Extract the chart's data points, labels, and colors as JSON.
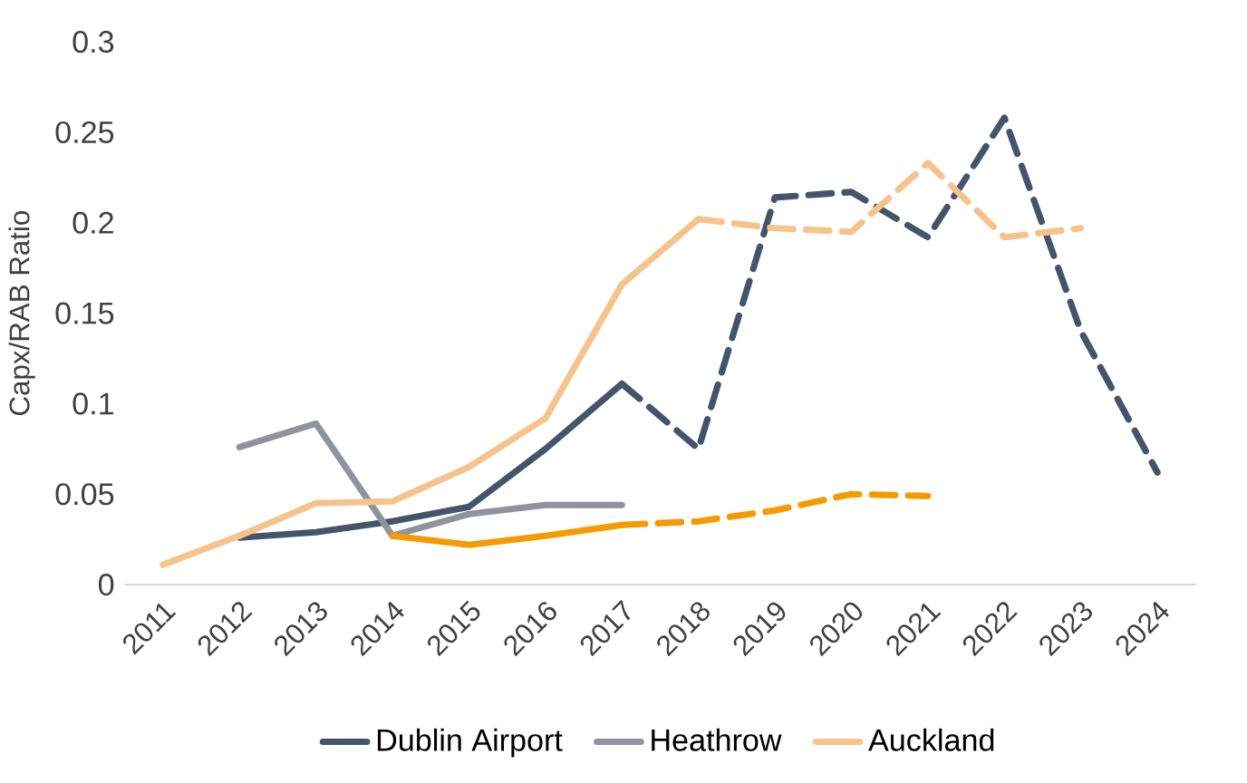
{
  "chart_data": {
    "type": "line",
    "ylabel": "Capx/RAB Ratio",
    "categories": [
      "2011",
      "2012",
      "2013",
      "2014",
      "2015",
      "2016",
      "2017",
      "2018",
      "2019",
      "2020",
      "2021",
      "2022",
      "2023",
      "2024"
    ],
    "series": [
      {
        "name": "Dublin Airport",
        "color": "#44546a",
        "line_style": "solid",
        "values": [
          null,
          0.026,
          0.029,
          0.035,
          0.043,
          0.075,
          0.111,
          null,
          null,
          null,
          null,
          null,
          null,
          null
        ]
      },
      {
        "color": "#44546a",
        "line_style": "dashed",
        "values": [
          null,
          null,
          null,
          null,
          null,
          null,
          0.111,
          0.075,
          0.214,
          0.217,
          0.192,
          0.258,
          0.14,
          0.062
        ]
      },
      {
        "name": "Heathrow",
        "color": "#8f939d",
        "line_style": "solid",
        "values": [
          null,
          0.076,
          0.089,
          0.027,
          0.039,
          0.044,
          0.044,
          null,
          null,
          null,
          null,
          null,
          null,
          null
        ]
      },
      {
        "color": "#f59b00",
        "line_style": "solid",
        "values": [
          null,
          null,
          null,
          0.027,
          0.022,
          0.027,
          0.033,
          null,
          null,
          null,
          null,
          null,
          null,
          null
        ]
      },
      {
        "color": "#f59b00",
        "line_style": "dashed",
        "values": [
          null,
          null,
          null,
          null,
          null,
          null,
          0.033,
          0.035,
          0.041,
          0.05,
          0.049,
          null,
          null,
          null
        ]
      },
      {
        "name": "Auckland",
        "color": "#f6c38c",
        "line_style": "solid",
        "values": [
          0.011,
          0.027,
          0.045,
          0.046,
          0.065,
          0.092,
          0.166,
          0.202,
          null,
          null,
          null,
          null,
          null,
          null
        ]
      },
      {
        "color": "#f6c38c",
        "line_style": "dashed",
        "values": [
          null,
          null,
          null,
          null,
          null,
          null,
          null,
          0.202,
          0.197,
          0.195,
          0.233,
          0.192,
          0.197,
          null
        ]
      }
    ],
    "ylim": [
      0,
      0.3
    ],
    "yticks": [
      0,
      0.05,
      0.1,
      0.15,
      0.2,
      0.25,
      0.3
    ],
    "legend": "bottom",
    "grid": false,
    "marker": "none"
  }
}
